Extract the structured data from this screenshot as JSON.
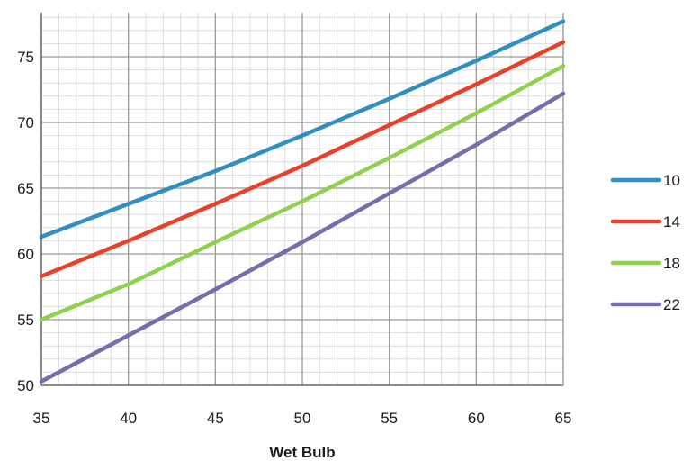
{
  "chart_data": {
    "type": "line",
    "xlabel": "Wet Bulb",
    "ylabel": "",
    "xlim": [
      35,
      65
    ],
    "ylim": [
      50,
      77
    ],
    "x_ticks": [
      35,
      40,
      45,
      50,
      55,
      60,
      65
    ],
    "y_ticks": [
      50,
      55,
      60,
      65,
      70,
      75
    ],
    "y_tick_labels": [
      "50",
      "55",
      "60",
      "65",
      "70",
      "75"
    ],
    "grid": true,
    "legend_position": "right",
    "series": [
      {
        "name": "10",
        "color": "#2e8fc0",
        "x": [
          35,
          40,
          45,
          50,
          55,
          60,
          65
        ],
        "values": [
          61.3,
          63.8,
          66.3,
          69.0,
          71.8,
          74.7,
          77.7
        ]
      },
      {
        "name": "14",
        "color": "#e8402a",
        "x": [
          35,
          40,
          45,
          50,
          55,
          60,
          65
        ],
        "values": [
          58.3,
          61.0,
          63.8,
          66.7,
          69.8,
          72.9,
          76.1
        ]
      },
      {
        "name": "18",
        "color": "#8fd14f",
        "x": [
          35,
          40,
          45,
          50,
          55,
          60,
          65
        ],
        "values": [
          55.0,
          57.7,
          60.9,
          64.0,
          67.3,
          70.7,
          74.3
        ]
      },
      {
        "name": "22",
        "color": "#7b6bab",
        "x": [
          35,
          40,
          45,
          50,
          55,
          60,
          65
        ],
        "values": [
          50.3,
          53.8,
          57.3,
          60.9,
          64.6,
          68.3,
          72.2
        ]
      }
    ]
  }
}
